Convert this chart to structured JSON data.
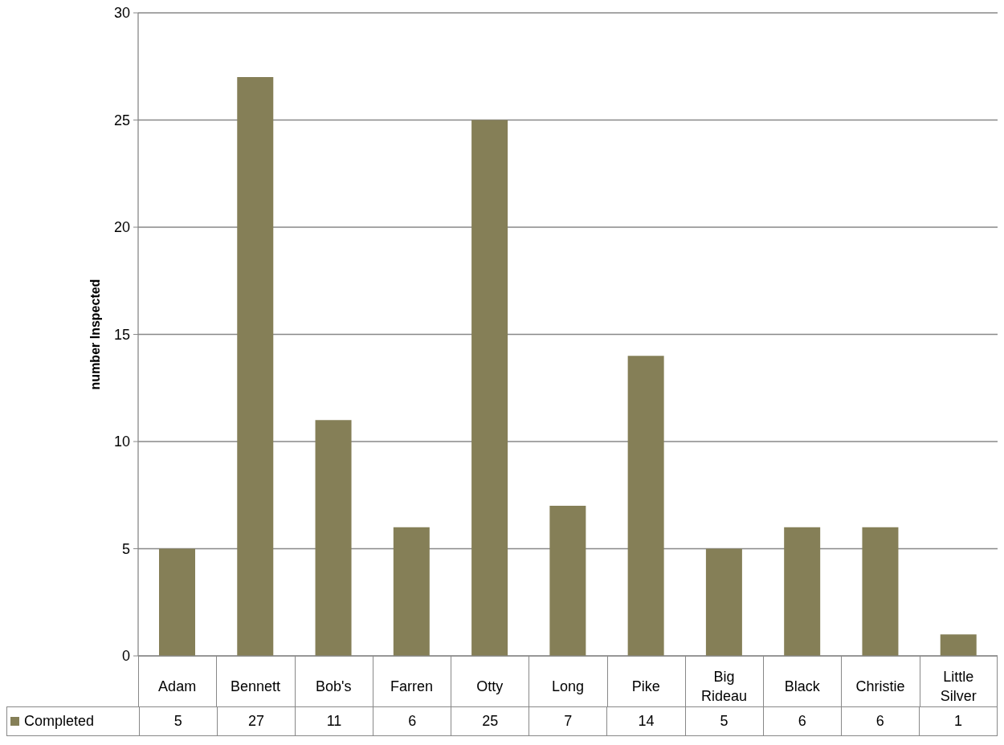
{
  "chart_data": {
    "type": "bar",
    "ylabel": "number Inspected",
    "categories": [
      "Adam",
      "Bennett",
      "Bob's",
      "Farren",
      "Otty",
      "Long",
      "Pike",
      "Big Rideau",
      "Black",
      "Christie",
      "Little Silver"
    ],
    "series": [
      {
        "name": "Completed",
        "color": "#857f57",
        "values": [
          5,
          27,
          11,
          6,
          25,
          7,
          14,
          5,
          6,
          6,
          1
        ]
      }
    ],
    "ylim": [
      0,
      30
    ],
    "yticks": [
      0,
      5,
      10,
      15,
      20,
      25,
      30
    ],
    "grid": "y",
    "legend": "bottom left",
    "data_labels": true
  }
}
